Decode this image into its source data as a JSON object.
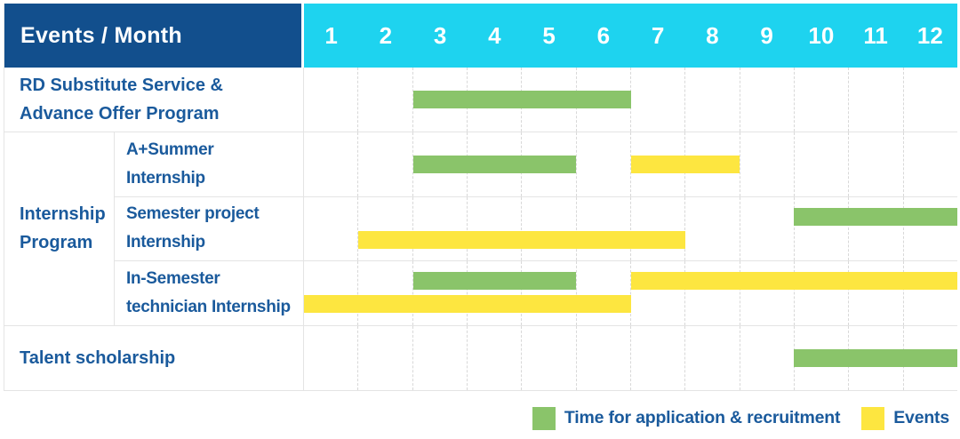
{
  "header": {
    "title": "Events / Month",
    "months": [
      "1",
      "2",
      "3",
      "4",
      "5",
      "6",
      "7",
      "8",
      "9",
      "10",
      "11",
      "12"
    ]
  },
  "labels": {
    "rd": "RD Substitute Service &\nAdvance Offer Program",
    "internship_group": "Internship\nProgram",
    "a_summer": "A+Summer\nInternship",
    "semester_project": "Semester project\nInternship",
    "in_semester": "In-Semester\ntechnician Internship",
    "talent": "Talent scholarship"
  },
  "legend": {
    "items": [
      {
        "key": "recruitment",
        "label": "Time for application & recruitment"
      },
      {
        "key": "events",
        "label": "Events"
      }
    ]
  },
  "colors": {
    "header_bg": "#124f8d",
    "month_header_bg": "#1ed3ef",
    "header_text": "#ffffff",
    "label_text": "#1a5a9c",
    "recruitment": "#8ac46a",
    "events": "#fde640",
    "grid_solid": "#e4e4e4",
    "grid_dashed": "#d8d8d8"
  },
  "chart_data": {
    "type": "bar",
    "subtype": "gantt",
    "title": "Events / Month",
    "x_axis": {
      "label": "Month",
      "ticks": [
        1,
        2,
        3,
        4,
        5,
        6,
        7,
        8,
        9,
        10,
        11,
        12
      ],
      "range": [
        1,
        12
      ],
      "grid": "dashed-vertical"
    },
    "legend_entries": [
      "Time for application & recruitment",
      "Events"
    ],
    "legend_position": "bottom-right",
    "rows": [
      {
        "group": "",
        "label": "RD Substitute Service & Advance Offer Program",
        "bars": [
          {
            "series": "recruitment",
            "start_month": 3,
            "end_month": 6,
            "lane": "mid"
          }
        ]
      },
      {
        "group": "Internship Program",
        "label": "A+Summer Internship",
        "bars": [
          {
            "series": "recruitment",
            "start_month": 3,
            "end_month": 5,
            "lane": "mid"
          },
          {
            "series": "events",
            "start_month": 7,
            "end_month": 8,
            "lane": "mid"
          }
        ]
      },
      {
        "group": "Internship Program",
        "label": "Semester project Internship",
        "bars": [
          {
            "series": "recruitment",
            "start_month": 10,
            "end_month": 12,
            "lane": "top"
          },
          {
            "series": "events",
            "start_month": 2,
            "end_month": 7,
            "lane": "bottom"
          }
        ]
      },
      {
        "group": "Internship Program",
        "label": "In-Semester technician Internship",
        "bars": [
          {
            "series": "recruitment",
            "start_month": 3,
            "end_month": 5,
            "lane": "top"
          },
          {
            "series": "events",
            "start_month": 7,
            "end_month": 12,
            "lane": "top"
          },
          {
            "series": "events",
            "start_month": 1,
            "end_month": 6,
            "lane": "bottom"
          }
        ]
      },
      {
        "group": "",
        "label": "Talent scholarship",
        "bars": [
          {
            "series": "recruitment",
            "start_month": 10,
            "end_month": 12,
            "lane": "mid"
          }
        ]
      }
    ]
  }
}
